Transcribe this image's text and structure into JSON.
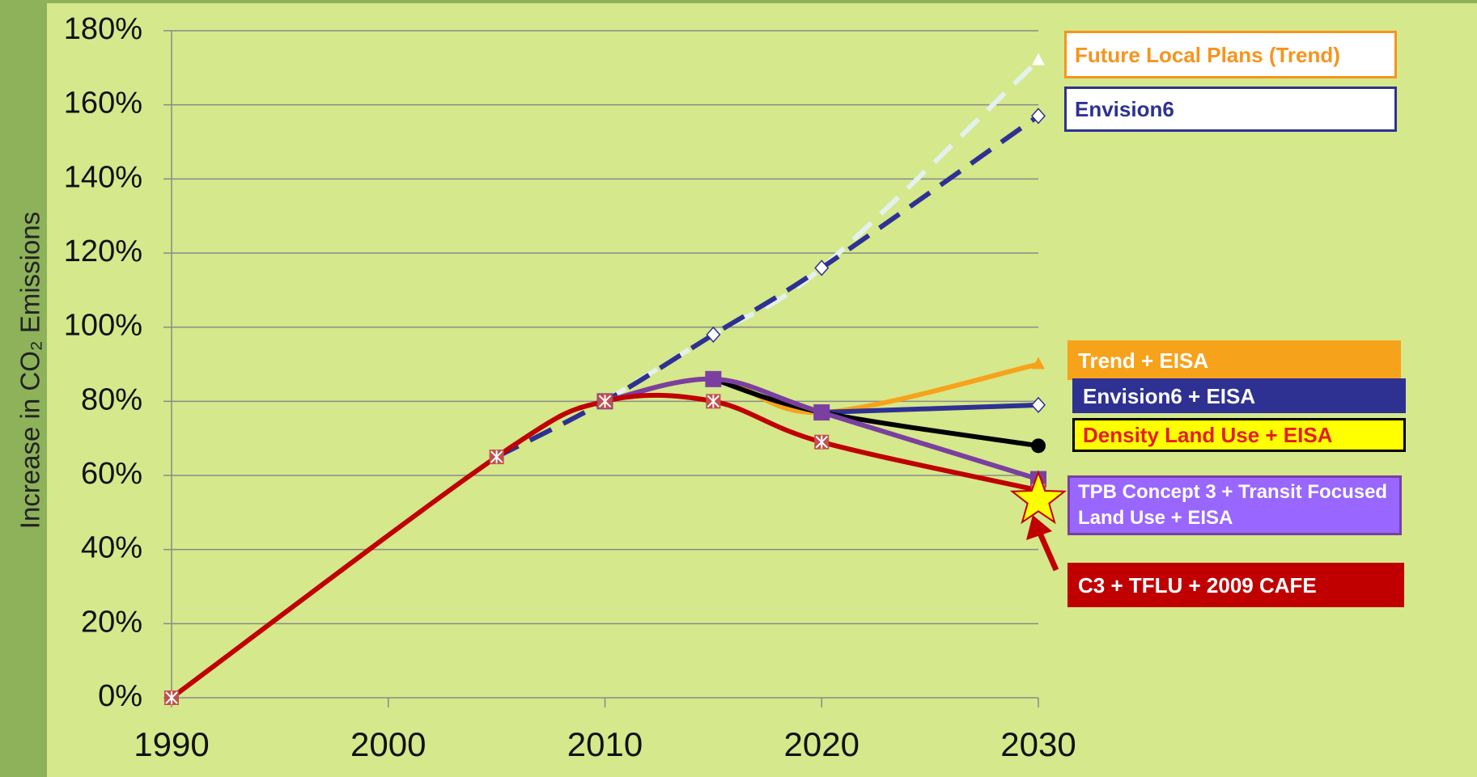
{
  "chart_data": {
    "type": "line",
    "y_label": "Increase in CO₂ Emissions",
    "x": [
      1990,
      2005,
      2010,
      2015,
      2020,
      2030
    ],
    "xlim": [
      1990,
      2030
    ],
    "xticks": [
      1990,
      2000,
      2010,
      2020,
      2030
    ],
    "ylim": [
      0,
      180
    ],
    "yticks": [
      {
        "value": 0,
        "label": "0%"
      },
      {
        "value": 20,
        "label": "20%"
      },
      {
        "value": 40,
        "label": "40%"
      },
      {
        "value": 60,
        "label": "60%"
      },
      {
        "value": 80,
        "label": "80%"
      },
      {
        "value": 100,
        "label": "100%"
      },
      {
        "value": 120,
        "label": "120%"
      },
      {
        "value": 140,
        "label": "140%"
      },
      {
        "value": 160,
        "label": "160%"
      },
      {
        "value": 180,
        "label": "180%"
      }
    ],
    "grid": true,
    "series": [
      {
        "name": "Future Local Plans (Trend)",
        "color": "#e4f1ee",
        "dashed": true,
        "marker": "triangle",
        "label_fill": "#ffffff",
        "label_color": "#f7941d",
        "label_border": "#f7941d",
        "values": [
          null,
          null,
          80,
          98,
          116,
          172
        ]
      },
      {
        "name": "Envision6",
        "color": "#2e3192",
        "dashed": true,
        "marker": "diamond",
        "label_fill": "#ffffff",
        "label_color": "#2e3192",
        "label_border": "#2e3192",
        "values": [
          null,
          65,
          80,
          98,
          116,
          157
        ]
      },
      {
        "name": "Trend + EISA",
        "color": "#f7a21b",
        "dashed": false,
        "marker": "triangle",
        "label_fill": "#f7a21b",
        "label_color": "#ffffff",
        "label_border": "#f7a21b",
        "values": [
          null,
          null,
          80,
          86,
          77,
          90
        ]
      },
      {
        "name": "Envision6 + EISA",
        "color": "#2e3192",
        "dashed": false,
        "marker": "diamond",
        "label_fill": "#2e3192",
        "label_color": "#ffffff",
        "label_border": "#2e3192",
        "values": [
          null,
          null,
          null,
          null,
          77,
          79
        ]
      },
      {
        "name": "Density Land Use + EISA",
        "color": "#000000",
        "dashed": false,
        "marker": "circle",
        "label_fill": "#ffff00",
        "label_color": "#e31e24",
        "label_border": "#000000",
        "values": [
          null,
          null,
          null,
          86,
          77,
          68
        ]
      },
      {
        "name": "TPB Concept 3 + Transit Focused Land Use + EISA",
        "color": "#7b3fa0",
        "dashed": false,
        "marker": "square",
        "label_fill": "#9966ff",
        "label_color": "#ffffff",
        "label_border": "#7b3fa0",
        "values": [
          null,
          null,
          80,
          86,
          77,
          59
        ]
      },
      {
        "name": "C3 + TFLU + 2009 CAFE",
        "color": "#c00000",
        "dashed": false,
        "marker": "asterisk",
        "label_fill": "#c00000",
        "label_color": "#ffffff",
        "label_border": "#c00000",
        "values": [
          0,
          65,
          80,
          80,
          69,
          56
        ]
      }
    ]
  }
}
